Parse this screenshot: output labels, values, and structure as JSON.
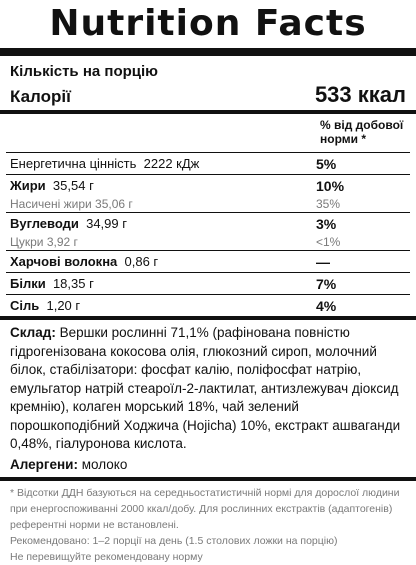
{
  "title": "Nutrition Facts",
  "serving_label": "Кількість на порцію",
  "calories": {
    "label": "Калорії",
    "value": "533 ккал"
  },
  "dv_header": {
    "line1": "% від добової",
    "line2": "норми *"
  },
  "rows": [
    {
      "label": "Енергетична цінність",
      "amount": "2222 кДж",
      "pct": "5%"
    },
    {
      "label": "Жири",
      "amount": "35,54 г",
      "pct": "10%"
    },
    {
      "label": "Насичені жири",
      "amount": "35,06 г",
      "pct": "35%"
    },
    {
      "label": "Вуглеводи",
      "amount": "34,99 г",
      "pct": "3%"
    },
    {
      "label": "Цукри",
      "amount": "3,92 г",
      "pct": "<1%"
    },
    {
      "label": "Харчові волокна",
      "amount": "0,86 г",
      "pct": "—"
    },
    {
      "label": "Білки",
      "amount": "18,35 г",
      "pct": "7%"
    },
    {
      "label": "Сіль",
      "amount": "1,20 г",
      "pct": "4%"
    }
  ],
  "ingredients": {
    "label": "Склад:",
    "text": "Вершки рослинні 71,1% (рафінована повністю гідрогенізована кокосова олія, глюкозний сироп, молочний білок, стабілізатори: фосфат калію, поліфосфат натрію, емульгатор натрій стеароїл-2-лактилат, антизлежувач діоксид кремнію), колаген морський 18%, чай зелений порошкоподібний Ходжича (Hojicha) 10%, екстракт ашваганди 0,48%, гіалуронова кислота."
  },
  "allergens": {
    "label": "Алергени:",
    "value": "молоко"
  },
  "notes": [
    "* Відсотки ДДН базуються на середньостатистичній нормі для дорослої людини",
    "при енергоспоживанні 2000 ккал/добу. Для рослинних екстрактів (адаптогенів)",
    "референтні норми не встановлені.",
    "Рекомендовано: 1–2 порції на день (1.5 столових ложки на порцію)",
    "Не перевищуйте рекомендовану норму"
  ]
}
